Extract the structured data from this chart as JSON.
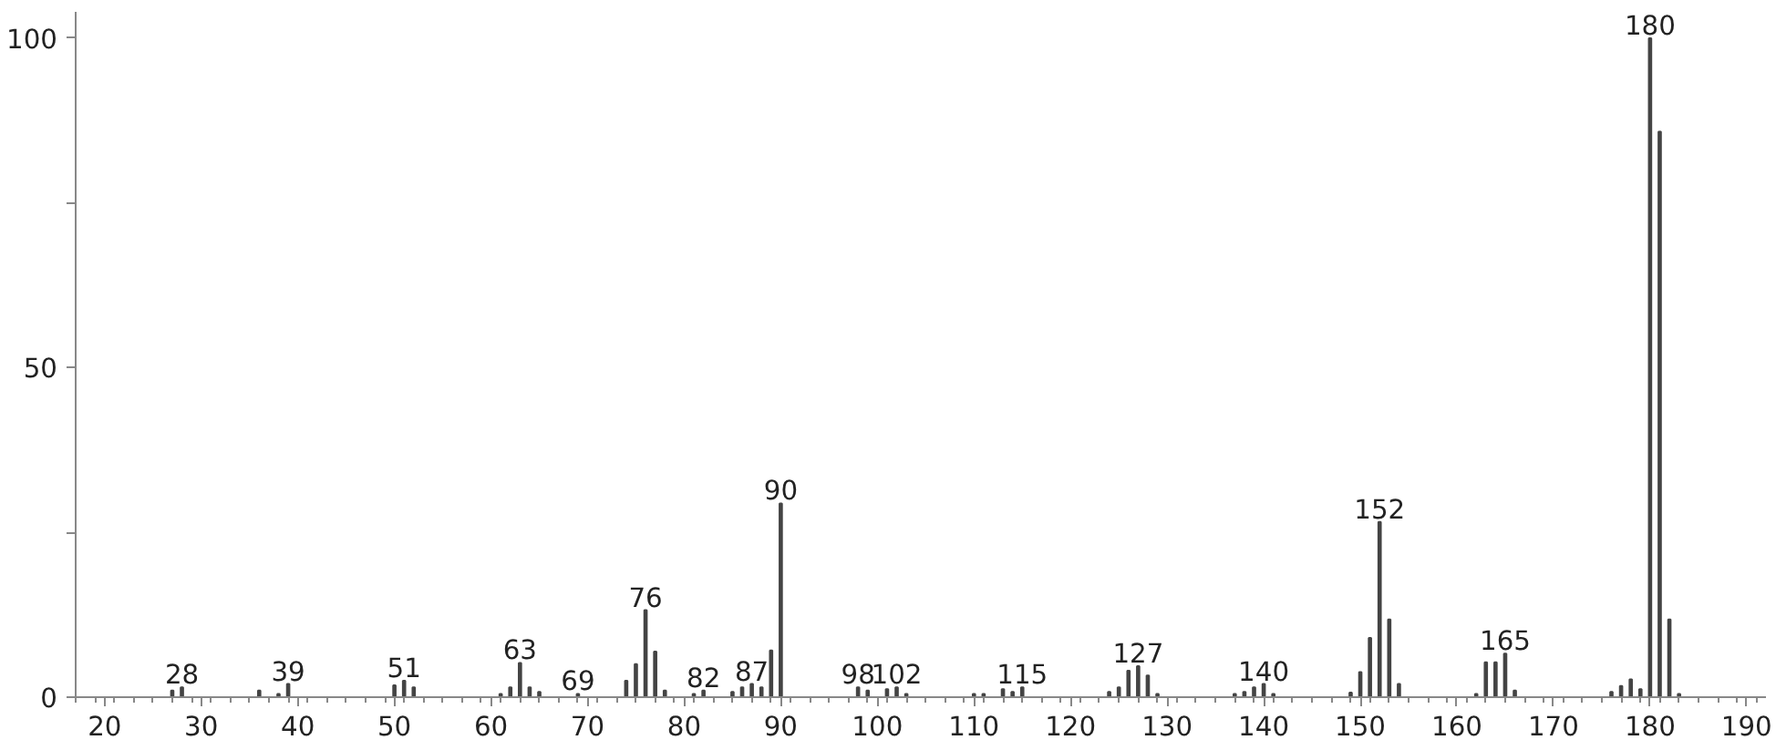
{
  "chart_data": {
    "type": "bar",
    "color": "#444444",
    "x": [
      27,
      28,
      36,
      38,
      39,
      50,
      51,
      52,
      61,
      62,
      63,
      64,
      65,
      69,
      74,
      75,
      76,
      77,
      78,
      81,
      82,
      85,
      86,
      87,
      88,
      89,
      90,
      98,
      99,
      101,
      102,
      103,
      110,
      111,
      113,
      114,
      115,
      124,
      125,
      126,
      127,
      128,
      129,
      137,
      138,
      139,
      140,
      141,
      149,
      150,
      151,
      152,
      153,
      154,
      162,
      163,
      164,
      165,
      166,
      176,
      177,
      178,
      179,
      180,
      181,
      182,
      183
    ],
    "values": [
      1,
      1.5,
      1,
      0.5,
      2,
      1.8,
      2.5,
      1.5,
      0.5,
      1.5,
      5.2,
      1.5,
      0.8,
      0.5,
      2.5,
      5,
      13.2,
      6.9,
      1,
      0.5,
      1,
      0.8,
      1.5,
      2,
      1.5,
      7.1,
      29.4,
      1.5,
      1,
      1.2,
      1.5,
      0.5,
      0.5,
      0.5,
      1.2,
      0.8,
      1.5,
      0.8,
      1.5,
      4,
      4.7,
      3.3,
      0.5,
      0.5,
      0.8,
      1.5,
      2,
      0.5,
      0.7,
      3.8,
      9,
      26.6,
      11.8,
      2,
      0.5,
      5.3,
      5.3,
      6.6,
      1,
      0.8,
      1.7,
      2.7,
      1.2,
      100,
      85.8,
      11.8,
      0.5
    ],
    "xlim": [
      17,
      192
    ],
    "ylim": [
      0,
      104
    ],
    "xticks": [
      20,
      30,
      40,
      50,
      60,
      70,
      80,
      90,
      100,
      110,
      120,
      130,
      140,
      150,
      160,
      170,
      180,
      190
    ],
    "yticks": [
      0,
      {
        "value": 25,
        "label": null
      },
      50,
      {
        "value": 75,
        "label": null
      },
      100
    ],
    "annotations": [
      {
        "text": "28",
        "x": 28,
        "y": 1.5
      },
      {
        "text": "39",
        "x": 39,
        "y": 2
      },
      {
        "text": "51",
        "x": 51,
        "y": 2.5
      },
      {
        "text": "63",
        "x": 63,
        "y": 5.2
      },
      {
        "text": "69",
        "x": 69,
        "y": 0.5
      },
      {
        "text": "76",
        "x": 76,
        "y": 13.2
      },
      {
        "text": "82",
        "x": 82,
        "y": 1
      },
      {
        "text": "87",
        "x": 87,
        "y": 2
      },
      {
        "text": "90",
        "x": 90,
        "y": 29.4
      },
      {
        "text": "98",
        "x": 98,
        "y": 1.5
      },
      {
        "text": "102",
        "x": 102,
        "y": 1.5
      },
      {
        "text": "115",
        "x": 115,
        "y": 1.5
      },
      {
        "text": "127",
        "x": 127,
        "y": 4.7
      },
      {
        "text": "140",
        "x": 140,
        "y": 2
      },
      {
        "text": "152",
        "x": 152,
        "y": 26.6
      },
      {
        "text": "165",
        "x": 165,
        "y": 6.6
      },
      {
        "text": "180",
        "x": 180,
        "y": 100
      }
    ]
  }
}
